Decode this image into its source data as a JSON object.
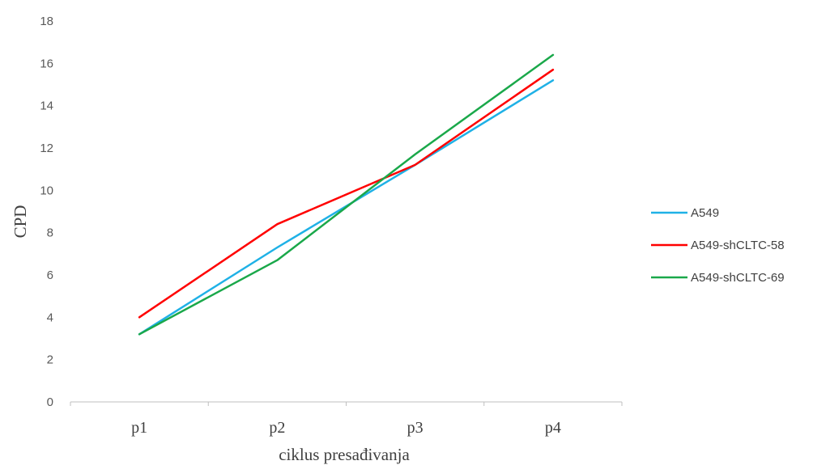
{
  "chart_data": {
    "type": "line",
    "title": "",
    "xlabel": "ciklus presađivanja",
    "ylabel": "CPD",
    "categories": [
      "p1",
      "p2",
      "p3",
      "p4"
    ],
    "ylim": [
      0,
      18
    ],
    "yticks": [
      0,
      2,
      4,
      6,
      8,
      10,
      12,
      14,
      16,
      18
    ],
    "grid": false,
    "legend_position": "right",
    "series": [
      {
        "name": "A549",
        "color": "#1fb1e6",
        "values": [
          3.2,
          7.3,
          11.2,
          15.2
        ]
      },
      {
        "name": "A549-shCLTC-58",
        "color": "#ff0000",
        "values": [
          4.0,
          8.4,
          11.2,
          15.7
        ]
      },
      {
        "name": "A549-shCLTC-69",
        "color": "#1aa84a",
        "values": [
          3.2,
          6.7,
          11.7,
          16.4
        ]
      }
    ]
  }
}
